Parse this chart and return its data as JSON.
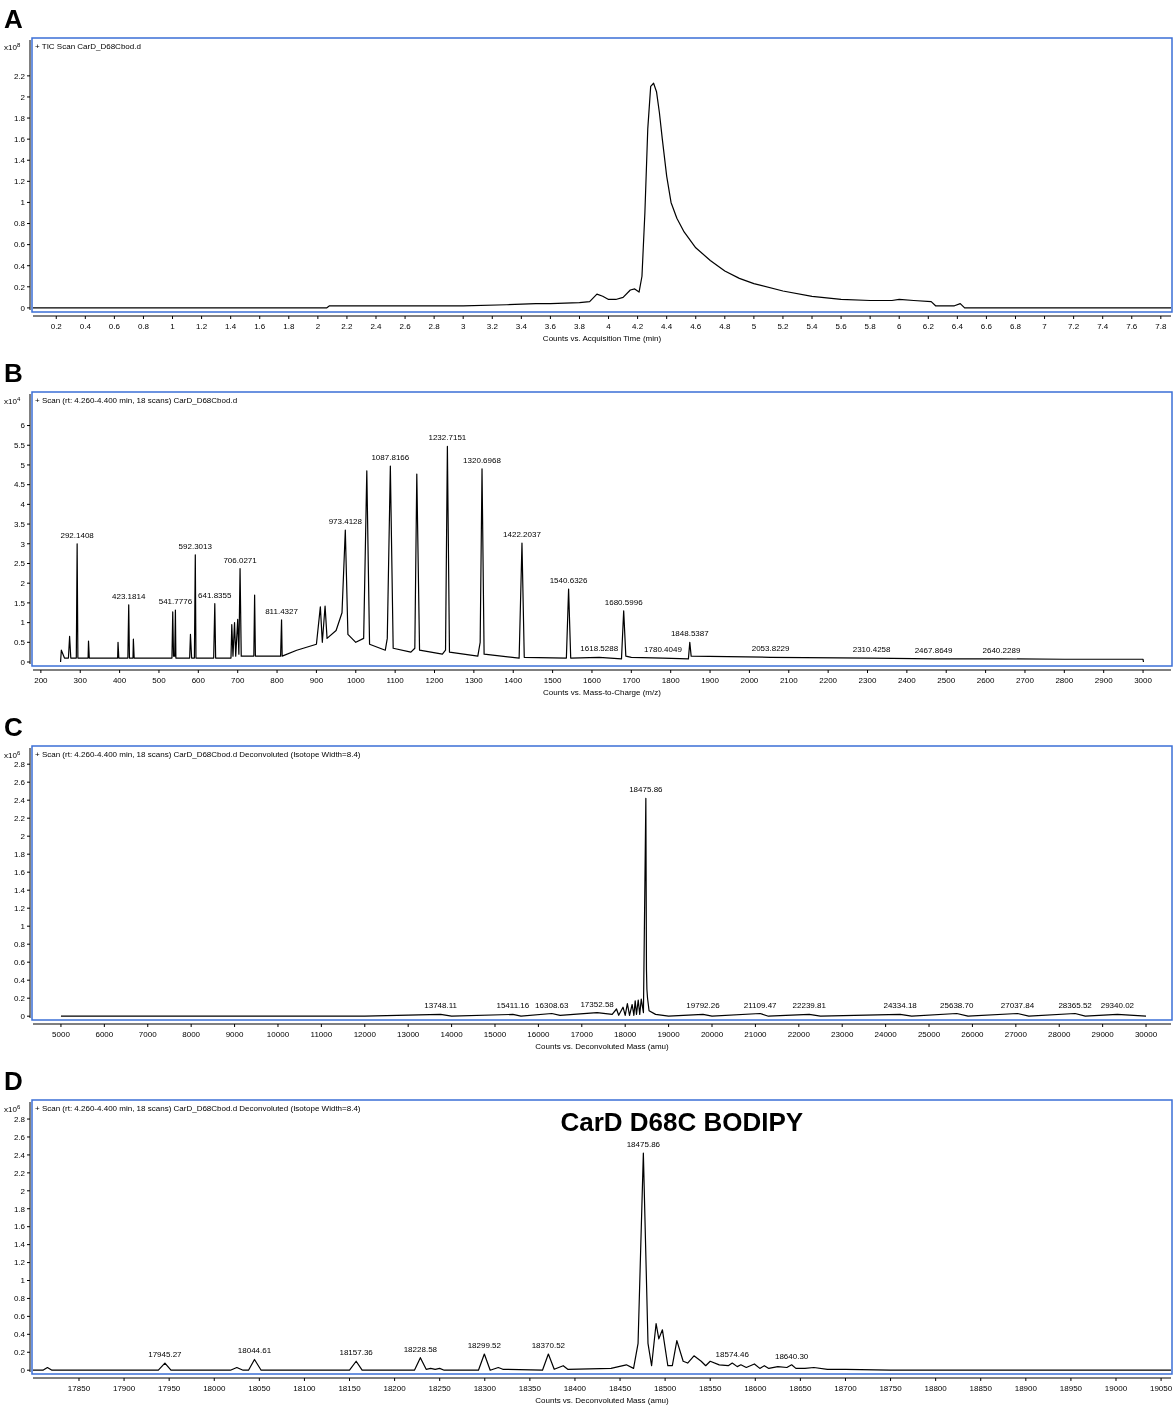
{
  "chart_data": [
    {
      "type": "line",
      "title": "A",
      "subtitle": "+ TIC Scan CarD_D68Cbod.d",
      "xlabel": "Counts vs. Acquisition Time (min)",
      "ylabel": "x10$^{8}$",
      "xlim": [
        0.04,
        7.87
      ],
      "ylim": [
        -0.02,
        2.54
      ],
      "xticks": [
        0.2,
        0.4,
        0.6,
        0.8,
        1,
        1.2,
        1.4,
        1.6,
        1.8,
        2,
        2.2,
        2.4,
        2.6,
        2.8,
        3,
        3.2,
        3.4,
        3.6,
        3.8,
        4,
        4.2,
        4.4,
        4.6,
        4.8,
        5,
        5.2,
        5.4,
        5.6,
        5.8,
        6,
        6.2,
        6.4,
        6.6,
        6.8,
        7,
        7.2,
        7.4,
        7.6,
        7.8
      ],
      "yticks": [
        0,
        0.2,
        0.4,
        0.6,
        0.8,
        1,
        1.2,
        1.4,
        1.6,
        1.8,
        2,
        2.2
      ],
      "x": [
        0.04,
        2.06,
        2.08,
        2.5,
        3.0,
        3.3,
        3.5,
        3.6,
        3.8,
        3.87,
        3.92,
        3.96,
        4.0,
        4.05,
        4.1,
        4.15,
        4.18,
        4.21,
        4.23,
        4.25,
        4.27,
        4.29,
        4.31,
        4.33,
        4.35,
        4.37,
        4.4,
        4.43,
        4.47,
        4.52,
        4.6,
        4.7,
        4.8,
        4.9,
        5.0,
        5.2,
        5.4,
        5.6,
        5.8,
        5.95,
        6.0,
        6.1,
        6.22,
        6.25,
        6.38,
        6.42,
        6.45,
        7.87
      ],
      "series": [
        {
          "color": "#000000",
          "values": [
            0,
            0,
            0.02,
            0.02,
            0.02,
            0.03,
            0.04,
            0.04,
            0.05,
            0.06,
            0.13,
            0.11,
            0.08,
            0.08,
            0.1,
            0.17,
            0.18,
            0.15,
            0.3,
            0.9,
            1.7,
            2.1,
            2.13,
            2.05,
            1.85,
            1.6,
            1.25,
            1.0,
            0.85,
            0.72,
            0.57,
            0.45,
            0.35,
            0.28,
            0.23,
            0.16,
            0.11,
            0.08,
            0.07,
            0.07,
            0.08,
            0.07,
            0.06,
            0.02,
            0.02,
            0.04,
            0,
            0
          ]
        }
      ]
    },
    {
      "type": "line",
      "title": "B",
      "subtitle": "+ Scan (rt: 4.260-4.400 min, 18 scans) CarD_D68Cbod.d",
      "xlabel": "Counts vs. Mass-to-Charge (m/z)",
      "ylabel": "x10$^{4}$",
      "xlim": [
        180,
        3071
      ],
      "ylim": [
        -0.05,
        6.8
      ],
      "xticks": [
        200,
        300,
        400,
        500,
        600,
        700,
        800,
        900,
        1000,
        1100,
        1200,
        1300,
        1400,
        1500,
        1600,
        1700,
        1800,
        1900,
        2000,
        2100,
        2200,
        2300,
        2400,
        2500,
        2600,
        2700,
        2800,
        2900,
        3000
      ],
      "yticks": [
        0,
        0.5,
        1,
        1.5,
        2,
        2.5,
        3,
        3.5,
        4,
        4.5,
        5,
        5.5,
        6
      ],
      "x": [
        250,
        252,
        260,
        270,
        273,
        276,
        290,
        292.14,
        294,
        320,
        321,
        323,
        395,
        396,
        398,
        421,
        423.18,
        425,
        434,
        435,
        437,
        533,
        535,
        537,
        540,
        541.78,
        543,
        578,
        580,
        583,
        590,
        592.3,
        594,
        639,
        641.84,
        644,
        683,
        685,
        688,
        692,
        695,
        700,
        703,
        706.03,
        709,
        741,
        743,
        745,
        809,
        811.43,
        813,
        850,
        900,
        910,
        915,
        922,
        927,
        950,
        965,
        973.41,
        980,
        1000,
        1020,
        1028,
        1035,
        1075,
        1080,
        1087.82,
        1095,
        1140,
        1150,
        1155,
        1162,
        1220,
        1228,
        1232.72,
        1238,
        1310,
        1316,
        1320.7,
        1326,
        1415,
        1422.2,
        1428,
        1535,
        1540.63,
        1546,
        1618.53,
        1675,
        1680.6,
        1686,
        1700,
        1780.4,
        1845,
        1848.54,
        1852,
        2053.82,
        2310.43,
        2467.86,
        2640.23,
        2800,
        3000,
        3001
      ],
      "series": [
        {
          "color": "#000000",
          "values": [
            0,
            0.3,
            0.1,
            0.1,
            0.65,
            0.1,
            0.1,
            3.0,
            0.1,
            0.1,
            0.53,
            0.1,
            0.1,
            0.5,
            0.1,
            0.1,
            1.45,
            0.1,
            0.1,
            0.58,
            0.1,
            0.1,
            1.27,
            0.15,
            0.15,
            1.32,
            0.1,
            0.1,
            0.7,
            0.1,
            0.1,
            2.72,
            0.1,
            0.1,
            1.48,
            0.1,
            0.1,
            0.95,
            0.15,
            1.0,
            0.15,
            1.08,
            0.2,
            2.37,
            0.15,
            0.15,
            1.7,
            0.15,
            0.15,
            1.07,
            0.15,
            0.3,
            0.45,
            1.4,
            0.5,
            1.42,
            0.6,
            0.8,
            1.25,
            3.35,
            0.7,
            0.5,
            0.6,
            4.85,
            0.45,
            0.3,
            0.6,
            4.97,
            0.35,
            0.25,
            0.35,
            4.77,
            0.3,
            0.2,
            0.3,
            5.47,
            0.25,
            0.15,
            0.5,
            4.9,
            0.2,
            0.1,
            3.02,
            0.12,
            0.1,
            1.85,
            0.1,
            0.12,
            0.08,
            1.3,
            0.15,
            0.12,
            0.1,
            0.08,
            0.5,
            0.15,
            0.12,
            0.1,
            0.08,
            0.08,
            0.07,
            0.07,
            0
          ]
        }
      ],
      "annotations": [
        {
          "text": "292.1408",
          "x": 292.14,
          "y": 3.0
        },
        {
          "text": "423.1814",
          "x": 423.18,
          "y": 1.45
        },
        {
          "text": "541.7776",
          "x": 541.78,
          "y": 1.32
        },
        {
          "text": "592.3013",
          "x": 592.3,
          "y": 2.72
        },
        {
          "text": "641.8355",
          "x": 641.84,
          "y": 1.48
        },
        {
          "text": "706.0271",
          "x": 706.03,
          "y": 2.37
        },
        {
          "text": "811.4327",
          "x": 811.43,
          "y": 1.07
        },
        {
          "text": "973.4128",
          "x": 973.41,
          "y": 3.35
        },
        {
          "text": "1087.8166",
          "x": 1087.82,
          "y": 4.97
        },
        {
          "text": "1232.7151",
          "x": 1232.72,
          "y": 5.47
        },
        {
          "text": "1320.6968",
          "x": 1320.7,
          "y": 4.9
        },
        {
          "text": "1422.2037",
          "x": 1422.2,
          "y": 3.02
        },
        {
          "text": "1540.6326",
          "x": 1540.63,
          "y": 1.85
        },
        {
          "text": "1618.5288",
          "x": 1618.53,
          "y": 0.12
        },
        {
          "text": "1680.5996",
          "x": 1680.6,
          "y": 1.3
        },
        {
          "text": "1780.4049",
          "x": 1780.4,
          "y": 0.1
        },
        {
          "text": "1848.5387",
          "x": 1848.54,
          "y": 0.5
        },
        {
          "text": "2053.8229",
          "x": 2053.82,
          "y": 0.12
        },
        {
          "text": "2310.4258",
          "x": 2310.43,
          "y": 0.1
        },
        {
          "text": "2467.8649",
          "x": 2467.86,
          "y": 0.08
        },
        {
          "text": "2640.2289",
          "x": 2640.23,
          "y": 0.08
        }
      ]
    },
    {
      "type": "line",
      "title": "C",
      "subtitle": "+ Scan (rt: 4.260-4.400 min, 18 scans) CarD_D68Cbod.d  Deconvoluted (Isotope Width=8.4)",
      "xlabel": "Counts vs. Deconvoluted Mass (amu)",
      "ylabel": "x10$^{6}$",
      "xlim": [
        4356,
        30575
      ],
      "ylim": [
        -0.02,
        2.98
      ],
      "xticks": [
        5000,
        6000,
        7000,
        8000,
        9000,
        10000,
        11000,
        12000,
        13000,
        14000,
        15000,
        16000,
        17000,
        18000,
        19000,
        20000,
        21000,
        22000,
        23000,
        24000,
        25000,
        26000,
        27000,
        28000,
        29000,
        30000
      ],
      "yticks": [
        0,
        0.2,
        0.4,
        0.6,
        0.8,
        1,
        1.2,
        1.4,
        1.6,
        1.8,
        2,
        2.2,
        2.4,
        2.6,
        2.8
      ],
      "x": [
        5000,
        12000,
        13748.11,
        14000,
        15411.16,
        15600,
        16308.63,
        16500,
        17352.58,
        17700,
        17800,
        17850,
        17950,
        18000,
        18050,
        18100,
        18160,
        18200,
        18230,
        18260,
        18300,
        18335,
        18370,
        18420,
        18475.86,
        18490,
        18500,
        18515,
        18550,
        18700,
        19000,
        19792.26,
        20000,
        21109.47,
        21300,
        22239.81,
        22500,
        24334.18,
        24600,
        25638.7,
        25900,
        27037.84,
        27300,
        28365.52,
        28600,
        29340.02,
        30000
      ],
      "series": [
        {
          "color": "#000000",
          "values": [
            0,
            0,
            0.02,
            0,
            0.02,
            0,
            0.03,
            0.01,
            0.04,
            0.02,
            0.08,
            0.01,
            0.1,
            0.01,
            0.14,
            0.01,
            0.13,
            0.01,
            0.17,
            0.02,
            0.18,
            0.02,
            0.19,
            0.04,
            2.42,
            0.52,
            0.3,
            0.2,
            0.06,
            0.02,
            0,
            0.02,
            0,
            0.03,
            0,
            0.02,
            0,
            0.02,
            0,
            0.03,
            0,
            0.03,
            0,
            0.03,
            0,
            0.02,
            0
          ]
        }
      ],
      "annotations": [
        {
          "text": "18475.86",
          "x": 18475.86,
          "y": 2.42
        },
        {
          "text": "13748.11",
          "x": 13748.11,
          "y": 0.02
        },
        {
          "text": "15411.16",
          "x": 15411.16,
          "y": 0.02
        },
        {
          "text": "16308.63",
          "x": 16308.63,
          "y": 0.03
        },
        {
          "text": "17352.58",
          "x": 17352.58,
          "y": 0.04
        },
        {
          "text": "19792.26",
          "x": 19792.26,
          "y": 0.02
        },
        {
          "text": "21109.47",
          "x": 21109.47,
          "y": 0.03
        },
        {
          "text": "22239.81",
          "x": 22239.81,
          "y": 0.02
        },
        {
          "text": "24334.18",
          "x": 24334.18,
          "y": 0.02
        },
        {
          "text": "25638.70",
          "x": 25638.7,
          "y": 0.03
        },
        {
          "text": "27037.84",
          "x": 27037.84,
          "y": 0.03
        },
        {
          "text": "28365.52",
          "x": 28365.52,
          "y": 0.03
        },
        {
          "text": "29340.02",
          "x": 29340.02,
          "y": 0.02
        }
      ]
    },
    {
      "type": "line",
      "title": "D",
      "subtitle": "+ Scan (rt: 4.260-4.400 min, 18 scans) CarD_D68Cbod.d  Deconvoluted (Isotope Width=8.4)",
      "xlabel": "Counts vs. Deconvoluted Mass (amu)",
      "ylabel": "x10$^{6}$",
      "xlim": [
        17799,
        19061
      ],
      "ylim": [
        -0.02,
        2.99
      ],
      "xticks": [
        17850,
        17900,
        17950,
        18000,
        18050,
        18100,
        18150,
        18200,
        18250,
        18300,
        18350,
        18400,
        18450,
        18500,
        18550,
        18600,
        18650,
        18700,
        18750,
        18800,
        18850,
        18900,
        18950,
        19000,
        19050
      ],
      "yticks": [
        0,
        0.2,
        0.4,
        0.6,
        0.8,
        1,
        1.2,
        1.4,
        1.6,
        1.8,
        2,
        2.2,
        2.4,
        2.6,
        2.8
      ],
      "x": [
        17799,
        17810,
        17815,
        17820,
        17938,
        17945.27,
        17952,
        18018,
        18025,
        18032,
        18038,
        18044.61,
        18052,
        18150,
        18157.36,
        18164,
        18222,
        18228.58,
        18235,
        18240,
        18245,
        18250,
        18255,
        18293,
        18299.52,
        18306,
        18315,
        18320,
        18364,
        18370.52,
        18377,
        18387,
        18392,
        18440,
        18457,
        18465,
        18470,
        18475.86,
        18481,
        18485,
        18490,
        18493,
        18497,
        18503,
        18508,
        18513,
        18520,
        18525,
        18532,
        18540,
        18545,
        18550,
        18560,
        18570,
        18574.46,
        18580,
        18584,
        18590,
        18599,
        18605,
        18610,
        18615,
        18625,
        18635,
        18640.3,
        18645,
        18655,
        18665,
        18680,
        18700,
        18750,
        19061
      ],
      "series": [
        {
          "color": "#000000",
          "values": [
            0,
            0,
            0.03,
            0,
            0,
            0.08,
            0,
            0,
            0.03,
            0,
            0,
            0.12,
            0,
            0,
            0.1,
            0,
            0,
            0.14,
            0.01,
            0.02,
            0.01,
            0.02,
            0,
            0,
            0.18,
            0,
            0.03,
            0.01,
            0,
            0.18,
            0.01,
            0.05,
            0.01,
            0.02,
            0.06,
            0.02,
            0.3,
            2.42,
            0.3,
            0.05,
            0.52,
            0.35,
            0.45,
            0.05,
            0.05,
            0.33,
            0.1,
            0.08,
            0.16,
            0.1,
            0.05,
            0.1,
            0.06,
            0.05,
            0.08,
            0.04,
            0.06,
            0.03,
            0.07,
            0.02,
            0.05,
            0.02,
            0.04,
            0.03,
            0.06,
            0.02,
            0.02,
            0.03,
            0.01,
            0.01,
            0,
            0
          ]
        }
      ],
      "annotations": [
        "CarD D68C BODIPY",
        {
          "text": "18475.86",
          "x": 18475.86,
          "y": 2.42
        },
        {
          "text": "17945.27",
          "x": 17945.27,
          "y": 0.08
        },
        {
          "text": "18044.61",
          "x": 18044.61,
          "y": 0.12
        },
        {
          "text": "18157.36",
          "x": 18157.36,
          "y": 0.1
        },
        {
          "text": "18228.58",
          "x": 18228.58,
          "y": 0.14
        },
        {
          "text": "18299.52",
          "x": 18299.52,
          "y": 0.18
        },
        {
          "text": "18370.52",
          "x": 18370.52,
          "y": 0.18
        },
        {
          "text": "18574.46",
          "x": 18574.46,
          "y": 0.08
        },
        {
          "text": "18640.30",
          "x": 18640.3,
          "y": 0.06
        }
      ]
    }
  ]
}
